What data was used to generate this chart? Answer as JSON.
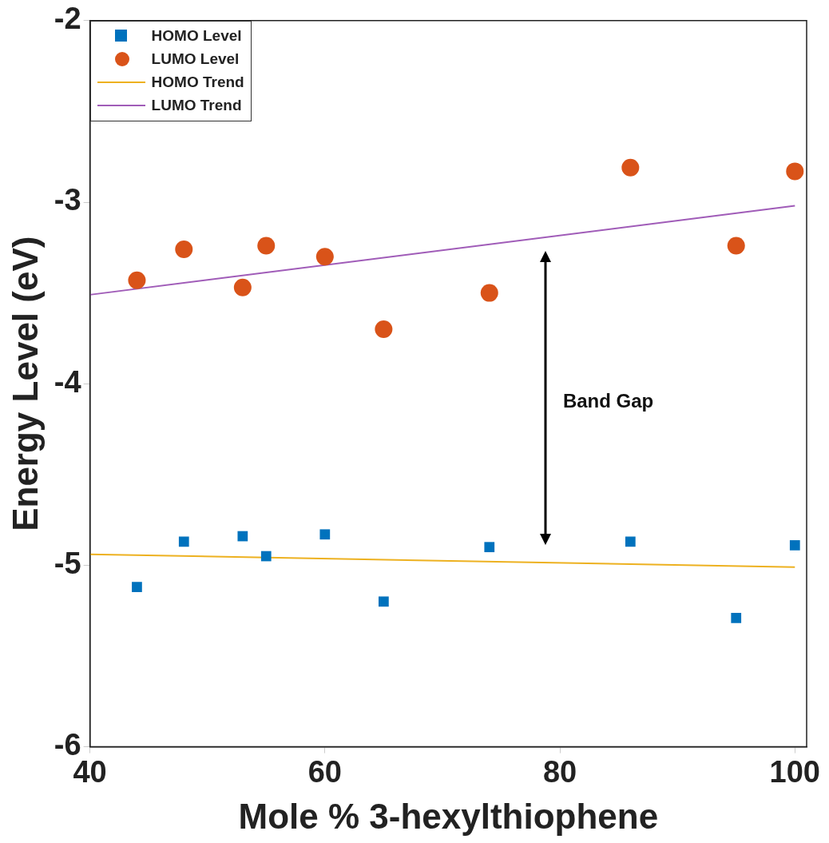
{
  "chart_data": {
    "type": "scatter",
    "xlabel": "Mole % 3-hexylthiophene",
    "ylabel": "Energy Level (eV)",
    "xlim": [
      40,
      101
    ],
    "xticks": [
      40,
      60,
      80,
      100
    ],
    "ylim": [
      -6,
      -2
    ],
    "yticks": [
      -6,
      -5,
      -4,
      -3,
      -2
    ],
    "grid": false,
    "legend": "top left",
    "series": [
      {
        "name": "HOMO Level",
        "marker": "square",
        "color": "#0072bd",
        "x": [
          44,
          48,
          53,
          55,
          60,
          65,
          74,
          86,
          95,
          100
        ],
        "values": [
          -5.12,
          -4.87,
          -4.84,
          -4.95,
          -4.83,
          -5.2,
          -4.9,
          -4.87,
          -5.29,
          -4.89
        ]
      },
      {
        "name": "LUMO Level",
        "marker": "circle",
        "color": "#d95319",
        "x": [
          44,
          48,
          53,
          55,
          60,
          65,
          74,
          86,
          95,
          100
        ],
        "values": [
          -3.43,
          -3.26,
          -3.47,
          -3.24,
          -3.3,
          -3.7,
          -3.5,
          -2.81,
          -3.24,
          -2.83
        ]
      },
      {
        "name": "HOMO Trend",
        "type": "line",
        "marker": "none",
        "color": "#edb120",
        "x": [
          40,
          100
        ],
        "values": [
          -4.94,
          -5.01
        ]
      },
      {
        "name": "LUMO Trend",
        "type": "line",
        "marker": "none",
        "color": "#a05cb8",
        "x": [
          40,
          100
        ],
        "values": [
          -3.51,
          -3.02
        ]
      }
    ],
    "annotations": [
      "Band Gap"
    ]
  }
}
